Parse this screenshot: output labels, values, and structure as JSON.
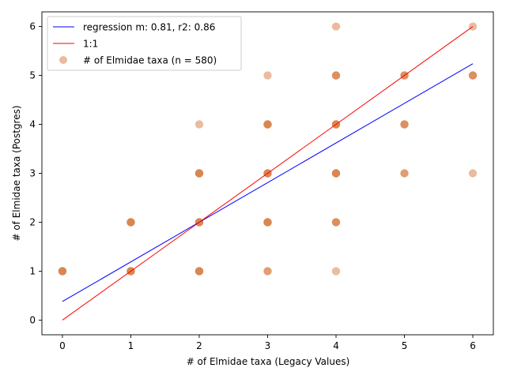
{
  "chart_data": {
    "type": "scatter",
    "title": "",
    "xlabel": "# of Elmidae taxa (Legacy Values)",
    "ylabel": "# of Elmidae taxa (Postgres)",
    "xlim": [
      -0.3,
      6.3
    ],
    "ylim": [
      -0.3,
      6.3
    ],
    "x_ticks": [
      0,
      1,
      2,
      3,
      4,
      5,
      6
    ],
    "y_ticks": [
      0,
      1,
      2,
      3,
      4,
      5,
      6
    ],
    "grid": false,
    "legend_position": "top-left",
    "series": [
      {
        "name": "regression m: 0.81, r2: 0.86",
        "kind": "line",
        "color": "#0000ff",
        "x": [
          0,
          6
        ],
        "y": [
          0.38,
          5.24
        ]
      },
      {
        "name": "1:1",
        "kind": "line",
        "color": "#ff0000",
        "x": [
          0,
          6
        ],
        "y": [
          0,
          6
        ]
      },
      {
        "name": "# of Elmidae taxa (n = 580)",
        "kind": "scatter",
        "color": "#d9854f",
        "points": [
          {
            "x": 0,
            "y": 1,
            "density": 5
          },
          {
            "x": 1,
            "y": 1,
            "density": 5
          },
          {
            "x": 1,
            "y": 2,
            "density": 5
          },
          {
            "x": 2,
            "y": 1,
            "density": 5
          },
          {
            "x": 2,
            "y": 2,
            "density": 5
          },
          {
            "x": 2,
            "y": 3,
            "density": 5
          },
          {
            "x": 2,
            "y": 4,
            "density": 1
          },
          {
            "x": 3,
            "y": 1,
            "density": 2
          },
          {
            "x": 3,
            "y": 2,
            "density": 5
          },
          {
            "x": 3,
            "y": 3,
            "density": 5
          },
          {
            "x": 3,
            "y": 4,
            "density": 5
          },
          {
            "x": 3,
            "y": 5,
            "density": 1
          },
          {
            "x": 4,
            "y": 1,
            "density": 1
          },
          {
            "x": 4,
            "y": 2,
            "density": 3
          },
          {
            "x": 4,
            "y": 3,
            "density": 5
          },
          {
            "x": 4,
            "y": 4,
            "density": 5
          },
          {
            "x": 4,
            "y": 5,
            "density": 3
          },
          {
            "x": 4,
            "y": 6,
            "density": 1
          },
          {
            "x": 5,
            "y": 3,
            "density": 2
          },
          {
            "x": 5,
            "y": 4,
            "density": 3
          },
          {
            "x": 5,
            "y": 5,
            "density": 3
          },
          {
            "x": 6,
            "y": 3,
            "density": 1
          },
          {
            "x": 6,
            "y": 5,
            "density": 3
          },
          {
            "x": 6,
            "y": 6,
            "density": 1
          }
        ]
      }
    ]
  }
}
